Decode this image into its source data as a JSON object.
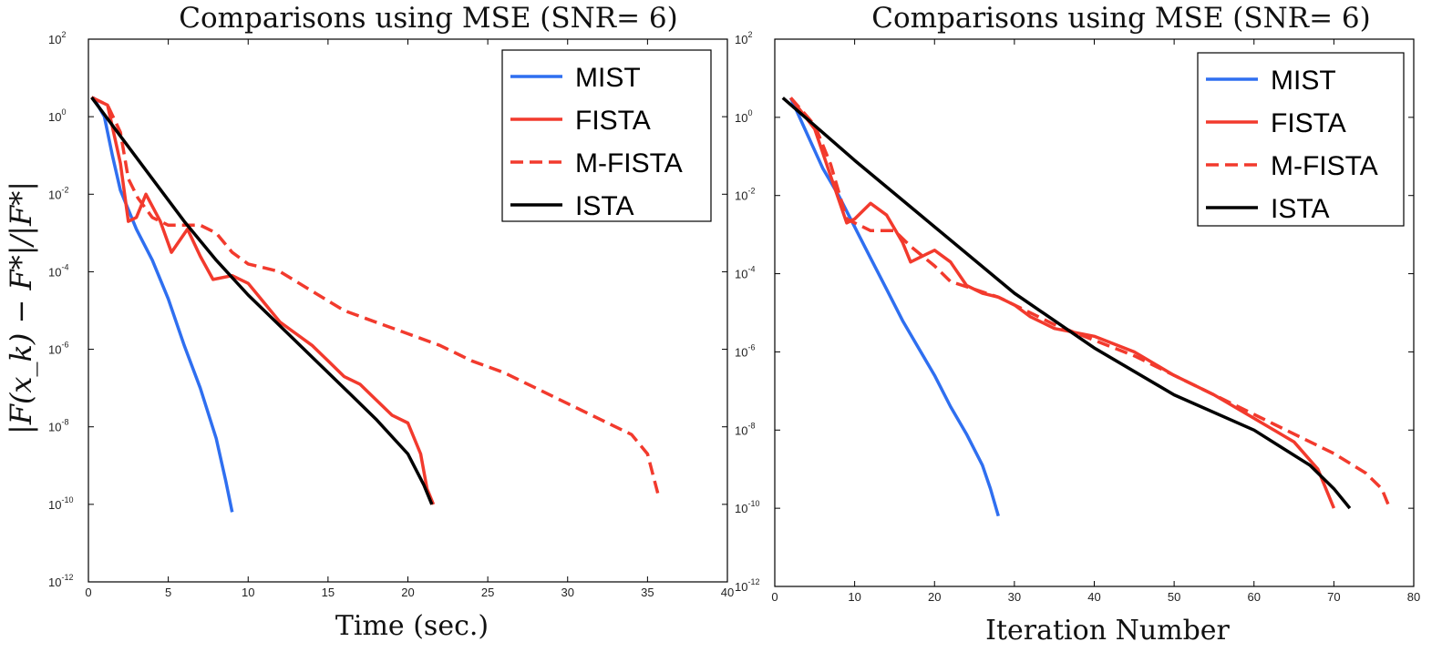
{
  "ylabel": "|F(x_k) − F*|/|F*|",
  "chart_data": [
    {
      "type": "line",
      "title": "Comparisons using MSE (SNR= 6)",
      "xlabel": "Time (sec.)",
      "ylabel": "|F(x_k) − F*|/|F*|",
      "yscale": "log",
      "xlim": [
        0,
        40
      ],
      "ylim_exp": [
        -12,
        2
      ],
      "xticks": [
        "0",
        "5",
        "10",
        "15",
        "20",
        "25",
        "30",
        "35",
        "40"
      ],
      "yticks": [
        {
          "base": "10",
          "exp": "2"
        },
        {
          "base": "10",
          "exp": "0"
        },
        {
          "base": "10",
          "exp": "-2"
        },
        {
          "base": "10",
          "exp": "-4"
        },
        {
          "base": "10",
          "exp": "-6"
        },
        {
          "base": "10",
          "exp": "-8"
        },
        {
          "base": "10",
          "exp": "-10"
        },
        {
          "base": "10",
          "exp": "-12"
        }
      ],
      "legend_position": "top-right",
      "series": [
        {
          "name": "MIST",
          "color": "#2f6ff0",
          "dash": "solid",
          "points": [
            [
              0.3,
              0.5
            ],
            [
              1,
              0
            ],
            [
              1.5,
              -1
            ],
            [
              2,
              -1.9
            ],
            [
              3,
              -2.9
            ],
            [
              4,
              -3.7
            ],
            [
              5,
              -4.7
            ],
            [
              6,
              -5.9
            ],
            [
              7,
              -7
            ],
            [
              8,
              -8.3
            ],
            [
              8.6,
              -9.4
            ],
            [
              9,
              -10.2
            ]
          ]
        },
        {
          "name": "FISTA",
          "color": "#f23a2d",
          "dash": "solid",
          "points": [
            [
              0.2,
              0.5
            ],
            [
              1.2,
              0.3
            ],
            [
              2,
              -1.2
            ],
            [
              2.5,
              -2.7
            ],
            [
              3,
              -2.6
            ],
            [
              3.6,
              -2
            ],
            [
              4.5,
              -2.7
            ],
            [
              5.2,
              -3.5
            ],
            [
              6.2,
              -2.9
            ],
            [
              7,
              -3.6
            ],
            [
              7.8,
              -4.2
            ],
            [
              9,
              -4.1
            ],
            [
              10,
              -4.3
            ],
            [
              11,
              -4.8
            ],
            [
              12,
              -5.3
            ],
            [
              13,
              -5.6
            ],
            [
              14,
              -5.9
            ],
            [
              15,
              -6.3
            ],
            [
              16,
              -6.7
            ],
            [
              17,
              -6.9
            ],
            [
              18,
              -7.3
            ],
            [
              19,
              -7.7
            ],
            [
              20,
              -7.9
            ],
            [
              20.8,
              -8.7
            ],
            [
              21.2,
              -9.6
            ],
            [
              21.6,
              -10
            ]
          ]
        },
        {
          "name": "M-FISTA",
          "color": "#f23a2d",
          "dash": "dashed",
          "points": [
            [
              0.2,
              0.5
            ],
            [
              1.2,
              0.3
            ],
            [
              2,
              -0.4
            ],
            [
              2.5,
              -1.6
            ],
            [
              3.1,
              -2.1
            ],
            [
              4,
              -2.6
            ],
            [
              5,
              -2.8
            ],
            [
              7,
              -2.8
            ],
            [
              8,
              -3
            ],
            [
              9,
              -3.5
            ],
            [
              10,
              -3.8
            ],
            [
              12,
              -4
            ],
            [
              14,
              -4.5
            ],
            [
              16,
              -5
            ],
            [
              18,
              -5.3
            ],
            [
              20,
              -5.6
            ],
            [
              22,
              -5.9
            ],
            [
              24,
              -6.3
            ],
            [
              26,
              -6.6
            ],
            [
              28,
              -7
            ],
            [
              30,
              -7.4
            ],
            [
              32,
              -7.8
            ],
            [
              34,
              -8.2
            ],
            [
              35,
              -8.7
            ],
            [
              35.7,
              -9.8
            ]
          ]
        },
        {
          "name": "ISTA",
          "color": "#000000",
          "dash": "solid",
          "points": [
            [
              0.2,
              0.5
            ],
            [
              2,
              -0.5
            ],
            [
              4,
              -1.6
            ],
            [
              6,
              -2.7
            ],
            [
              8,
              -3.7
            ],
            [
              10,
              -4.6
            ],
            [
              12,
              -5.4
            ],
            [
              14,
              -6.2
            ],
            [
              16,
              -7
            ],
            [
              18,
              -7.8
            ],
            [
              20,
              -8.7
            ],
            [
              21,
              -9.5
            ],
            [
              21.5,
              -10
            ]
          ]
        }
      ]
    },
    {
      "type": "line",
      "title": "Comparisons using MSE (SNR= 6)",
      "xlabel": "Iteration Number",
      "ylabel": "",
      "yscale": "log",
      "xlim": [
        0,
        80
      ],
      "ylim_exp": [
        -12,
        2
      ],
      "xticks": [
        "0",
        "10",
        "20",
        "30",
        "40",
        "50",
        "60",
        "70",
        "80"
      ],
      "yticks": [
        {
          "base": "10",
          "exp": "2"
        },
        {
          "base": "10",
          "exp": "0"
        },
        {
          "base": "10",
          "exp": "-2"
        },
        {
          "base": "10",
          "exp": "-4"
        },
        {
          "base": "10",
          "exp": "-6"
        },
        {
          "base": "10",
          "exp": "-8"
        },
        {
          "base": "10",
          "exp": "-10"
        },
        {
          "base": "10",
          "exp": "-12"
        }
      ],
      "legend_position": "top-right",
      "series": [
        {
          "name": "MIST",
          "color": "#2f6ff0",
          "dash": "solid",
          "points": [
            [
              2,
              0.5
            ],
            [
              4,
              -0.4
            ],
            [
              6,
              -1.3
            ],
            [
              8,
              -2
            ],
            [
              10,
              -2.8
            ],
            [
              12,
              -3.6
            ],
            [
              14,
              -4.4
            ],
            [
              16,
              -5.2
            ],
            [
              18,
              -5.9
            ],
            [
              20,
              -6.6
            ],
            [
              22,
              -7.4
            ],
            [
              24,
              -8.1
            ],
            [
              26,
              -8.9
            ],
            [
              27,
              -9.5
            ],
            [
              28,
              -10.2
            ]
          ]
        },
        {
          "name": "FISTA",
          "color": "#f23a2d",
          "dash": "solid",
          "points": [
            [
              2,
              0.5
            ],
            [
              5,
              -0.3
            ],
            [
              7,
              -1.5
            ],
            [
              9,
              -2.7
            ],
            [
              10,
              -2.6
            ],
            [
              12,
              -2.2
            ],
            [
              14,
              -2.5
            ],
            [
              16,
              -3.2
            ],
            [
              17,
              -3.7
            ],
            [
              19,
              -3.5
            ],
            [
              20,
              -3.4
            ],
            [
              22,
              -3.7
            ],
            [
              24,
              -4.3
            ],
            [
              26,
              -4.5
            ],
            [
              28,
              -4.6
            ],
            [
              30,
              -4.8
            ],
            [
              32,
              -5.1
            ],
            [
              35,
              -5.4
            ],
            [
              40,
              -5.6
            ],
            [
              45,
              -6
            ],
            [
              50,
              -6.6
            ],
            [
              55,
              -7.1
            ],
            [
              60,
              -7.7
            ],
            [
              65,
              -8.3
            ],
            [
              68,
              -9
            ],
            [
              70,
              -10
            ]
          ]
        },
        {
          "name": "M-FISTA",
          "color": "#f23a2d",
          "dash": "dashed",
          "points": [
            [
              2,
              0.5
            ],
            [
              5,
              -0.2
            ],
            [
              7,
              -1.2
            ],
            [
              9,
              -2.6
            ],
            [
              12,
              -2.9
            ],
            [
              15,
              -2.9
            ],
            [
              17,
              -3.3
            ],
            [
              20,
              -3.8
            ],
            [
              22,
              -4.2
            ],
            [
              25,
              -4.4
            ],
            [
              28,
              -4.6
            ],
            [
              30,
              -4.8
            ],
            [
              35,
              -5.3
            ],
            [
              40,
              -5.7
            ],
            [
              45,
              -6.1
            ],
            [
              50,
              -6.6
            ],
            [
              55,
              -7.1
            ],
            [
              60,
              -7.6
            ],
            [
              65,
              -8.1
            ],
            [
              70,
              -8.6
            ],
            [
              74,
              -9.1
            ],
            [
              76,
              -9.5
            ],
            [
              77,
              -10
            ]
          ]
        },
        {
          "name": "ISTA",
          "color": "#000000",
          "dash": "solid",
          "points": [
            [
              1,
              0.5
            ],
            [
              10,
              -1.1
            ],
            [
              20,
              -2.8
            ],
            [
              30,
              -4.5
            ],
            [
              40,
              -5.9
            ],
            [
              50,
              -7.1
            ],
            [
              60,
              -8
            ],
            [
              67,
              -8.9
            ],
            [
              70,
              -9.5
            ],
            [
              72,
              -10
            ]
          ]
        }
      ]
    }
  ]
}
